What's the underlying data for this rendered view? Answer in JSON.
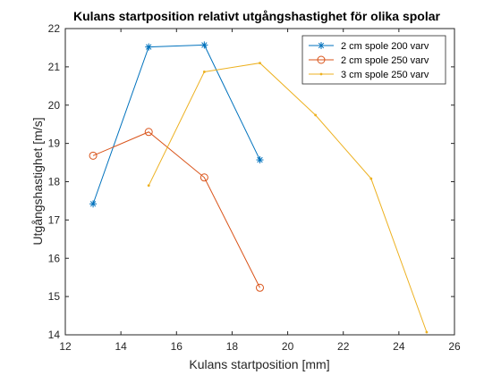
{
  "chart_data": {
    "type": "line",
    "title": "Kulans startposition relativt utgångshastighet för olika spolar",
    "xlabel": "Kulans startposition [mm]",
    "ylabel": "Utgångshastighet [m/s]",
    "xlim": [
      12,
      26
    ],
    "ylim": [
      14,
      22
    ],
    "xticks": [
      12,
      14,
      16,
      18,
      20,
      22,
      24,
      26
    ],
    "yticks": [
      14,
      15,
      16,
      17,
      18,
      19,
      20,
      21,
      22
    ],
    "grid": false,
    "legend_position": "top-right",
    "series": [
      {
        "name": "2 cm spole 200 varv",
        "color": "#0072BD",
        "marker": "asterisk",
        "x": [
          13,
          15,
          17,
          19
        ],
        "y": [
          17.42,
          21.52,
          21.57,
          18.57
        ]
      },
      {
        "name": "2 cm spole 250 varv",
        "color": "#D95319",
        "marker": "circle",
        "x": [
          13,
          15,
          17,
          19
        ],
        "y": [
          18.68,
          19.3,
          18.11,
          15.23
        ]
      },
      {
        "name": "3 cm spole 250 varv",
        "color": "#EDB120",
        "marker": "point",
        "x": [
          15,
          17,
          19,
          21,
          23,
          25
        ],
        "y": [
          17.9,
          20.87,
          21.1,
          19.74,
          18.08,
          14.07
        ]
      }
    ]
  }
}
